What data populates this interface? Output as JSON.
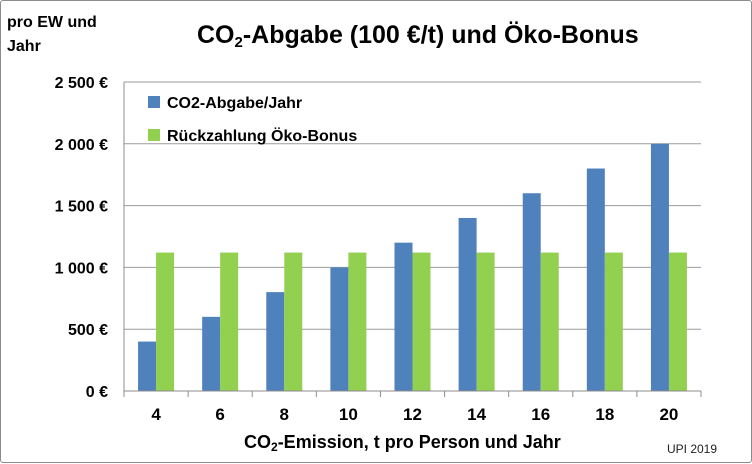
{
  "chart_data": {
    "type": "bar",
    "title_main": "CO",
    "title_sub": "2",
    "title_rest": "-Abgabe (100 €/t) und Öko-Bonus",
    "ylabel_line1": "pro EW und",
    "ylabel_line2": "Jahr",
    "xlabel_main": "CO",
    "xlabel_sub": "2",
    "xlabel_rest": "-Emission, t pro Person und Jahr",
    "source": "UPI 2019",
    "categories": [
      "4",
      "6",
      "8",
      "10",
      "12",
      "14",
      "16",
      "18",
      "20"
    ],
    "ylim": [
      0,
      2500
    ],
    "yticks": [
      0,
      500,
      1000,
      1500,
      2000,
      2500
    ],
    "ytick_labels": [
      "0 €",
      "500 €",
      "1 000 €",
      "1 500 €",
      "2 000 €",
      "2 500 €"
    ],
    "grid": true,
    "legend_position": "top-left",
    "series": [
      {
        "name": "CO2-Abgabe/Jahr",
        "color": "#4f81bd",
        "values": [
          400,
          600,
          800,
          1000,
          1200,
          1400,
          1600,
          1800,
          2000
        ]
      },
      {
        "name": "Rückzahlung Öko-Bonus",
        "color": "#92d050",
        "values": [
          1120,
          1120,
          1120,
          1120,
          1120,
          1120,
          1120,
          1120,
          1120
        ]
      }
    ]
  }
}
